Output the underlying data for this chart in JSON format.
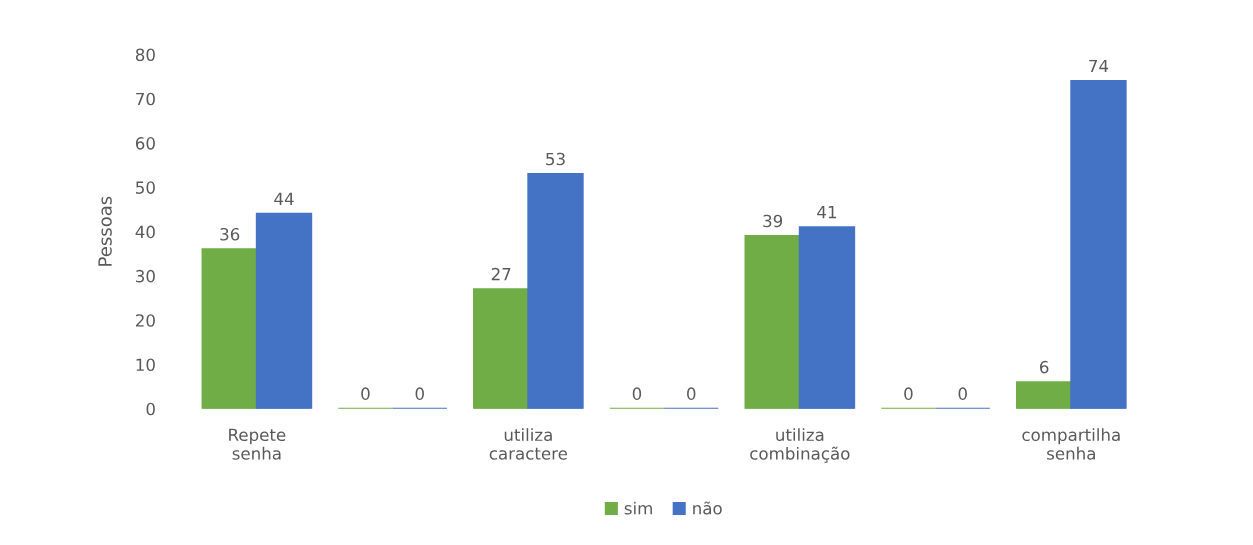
{
  "chart_data": {
    "type": "bar",
    "ylabel": "Pessoas",
    "categories": [
      "Repete\nsenha",
      null,
      "utiliza\ncaractere",
      null,
      "utiliza\ncombinação",
      null,
      "compartilha\nsenha"
    ],
    "series": [
      {
        "name": "sim",
        "color": "#70ad47",
        "values": [
          36,
          0,
          27,
          0,
          39,
          0,
          6
        ]
      },
      {
        "name": "não",
        "color": "#4472c4",
        "values": [
          44,
          0,
          53,
          0,
          41,
          0,
          74
        ]
      }
    ],
    "ylim": [
      0,
      80
    ],
    "yticks": [
      0,
      10,
      20,
      30,
      40,
      50,
      60,
      70,
      80
    ],
    "data_labels": true,
    "grid": false,
    "legend": "bottom"
  }
}
